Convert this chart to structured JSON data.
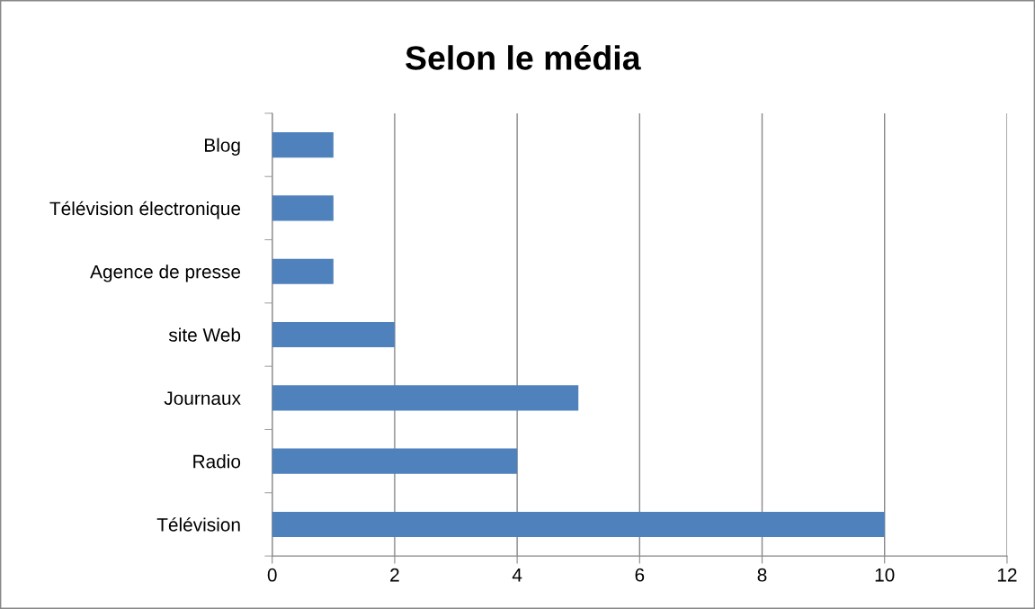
{
  "chart_data": {
    "type": "bar",
    "orientation": "horizontal",
    "title": "Selon le média",
    "categories": [
      "Blog",
      "Télévision électronique",
      "Agence de presse",
      "site Web",
      "Journaux",
      "Radio",
      "Télévision"
    ],
    "values": [
      1,
      1,
      1,
      2,
      5,
      4,
      10
    ],
    "color": "#4f81bd",
    "xlim": [
      0,
      12
    ],
    "xticks": [
      0,
      2,
      4,
      6,
      8,
      10,
      12
    ],
    "grid": "x",
    "legend": false
  }
}
